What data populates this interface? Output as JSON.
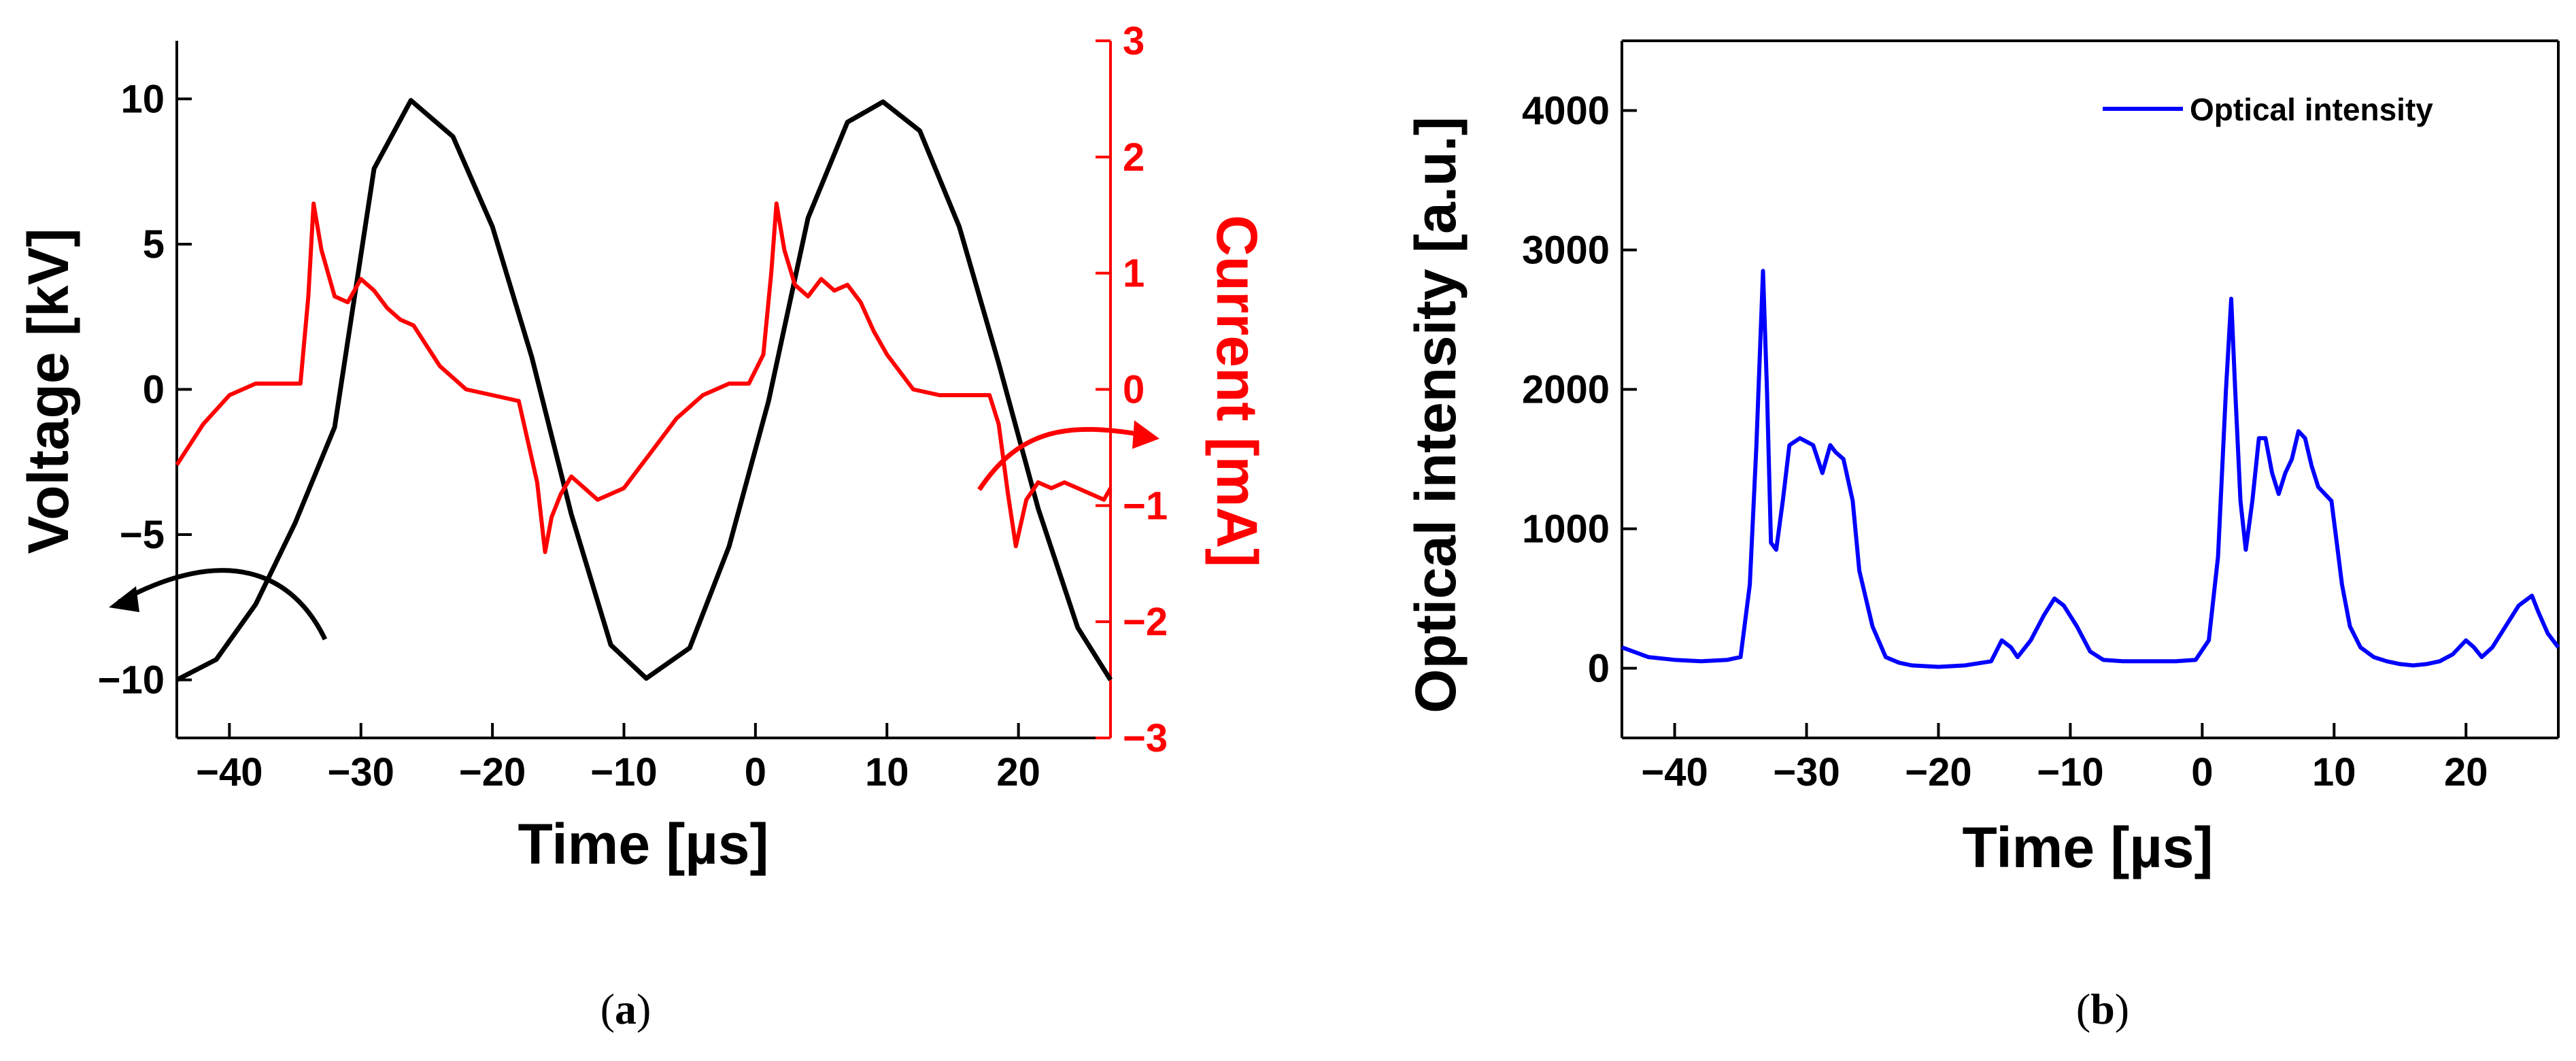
{
  "colors": {
    "voltage": "#000000",
    "current": "#ff0000",
    "optical": "#0000ff"
  },
  "chart_data": [
    {
      "type": "line",
      "panel_label_open": "(",
      "panel_label_letter": "a",
      "panel_label_close": ")",
      "xlabel": "Time [µs]",
      "ylabel": "Voltage [kV]",
      "y2label": "Current [mA]",
      "xlim": [
        -44,
        27
      ],
      "ylim": [
        -12,
        12
      ],
      "y2lim": [
        -3,
        3
      ],
      "xticks": [
        -40,
        -30,
        -20,
        -10,
        0,
        10,
        20
      ],
      "xtick_labels": [
        "−40",
        "−30",
        "−20",
        "−10",
        "0",
        "10",
        "20"
      ],
      "yticks": [
        10,
        5,
        0,
        -5,
        -10
      ],
      "ytick_labels": [
        "10",
        "5",
        "0",
        "−5",
        "−10"
      ],
      "y2ticks": [
        3,
        2,
        1,
        0,
        -1,
        -2,
        -3
      ],
      "y2tick_labels": [
        "3",
        "2",
        "1",
        "0",
        "−1",
        "−2",
        "−3"
      ],
      "series": [
        {
          "name": "Voltage",
          "axis": "left",
          "color": "#000000",
          "x": [
            -44,
            -41,
            -38,
            -35,
            -32,
            -29,
            -26.2,
            -23,
            -20,
            -17,
            -14,
            -11,
            -8.3,
            -5,
            -2,
            1,
            4,
            7,
            9.7,
            12.5,
            15.5,
            18.5,
            21.5,
            24.5,
            27
          ],
          "y": [
            -10,
            -9.3,
            -7.4,
            -4.6,
            -1.3,
            7.6,
            9.95,
            8.7,
            5.6,
            1.1,
            -4.3,
            -8.8,
            -9.95,
            -8.9,
            -5.4,
            -0.4,
            5.9,
            9.2,
            9.9,
            8.9,
            5.6,
            0.9,
            -4.1,
            -8.2,
            -10
          ]
        },
        {
          "name": "Current",
          "axis": "right",
          "color": "#ff0000",
          "x": [
            -44,
            -42,
            -40,
            -38,
            -36,
            -34.6,
            -34.0,
            -33.6,
            -33.0,
            -32,
            -31,
            -30,
            -29,
            -28,
            -27,
            -26,
            -24,
            -22,
            -20,
            -18,
            -17.2,
            -16.6,
            -16.0,
            -15.5,
            -14.8,
            -14,
            -13,
            -12,
            -11,
            -10,
            -9,
            -8,
            -6,
            -4,
            -2,
            -0.5,
            0.6,
            1.2,
            1.6,
            2.2,
            3,
            4,
            5,
            6,
            7,
            8,
            9,
            10,
            12,
            14,
            16,
            17.8,
            18.5,
            19.2,
            19.8,
            20.6,
            21.5,
            22.5,
            23.5,
            24.5,
            25.5,
            26.5,
            27
          ],
          "y": [
            -0.65,
            -0.3,
            -0.05,
            0.05,
            0.05,
            0.05,
            0.8,
            1.6,
            1.2,
            0.8,
            0.75,
            0.95,
            0.85,
            0.7,
            0.6,
            0.55,
            0.2,
            0.0,
            -0.05,
            -0.1,
            -0.5,
            -0.8,
            -1.4,
            -1.1,
            -0.9,
            -0.75,
            -0.85,
            -0.95,
            -0.9,
            -0.85,
            -0.7,
            -0.55,
            -0.25,
            -0.05,
            0.05,
            0.05,
            0.3,
            1.0,
            1.6,
            1.2,
            0.9,
            0.8,
            0.95,
            0.85,
            0.9,
            0.75,
            0.5,
            0.3,
            0.0,
            -0.05,
            -0.05,
            -0.05,
            -0.3,
            -0.9,
            -1.35,
            -0.95,
            -0.8,
            -0.85,
            -0.8,
            -0.85,
            -0.9,
            -0.95,
            -0.85
          ]
        }
      ]
    },
    {
      "type": "line",
      "panel_label_open": "(",
      "panel_label_letter": "b",
      "panel_label_close": ")",
      "xlabel": "Time [µs]",
      "ylabel": "Optical intensity [a.u.]",
      "xlim": [
        -44,
        27
      ],
      "ylim": [
        -500,
        4500
      ],
      "xticks": [
        -40,
        -30,
        -20,
        -10,
        0,
        10,
        20
      ],
      "xtick_labels": [
        "−40",
        "−30",
        "−20",
        "−10",
        "0",
        "10",
        "20"
      ],
      "yticks": [
        4000,
        3000,
        2000,
        1000,
        0
      ],
      "ytick_labels": [
        "4000",
        "3000",
        "2000",
        "1000",
        "0"
      ],
      "legend": {
        "position": "top-right",
        "entries": [
          "Optical intensity"
        ]
      },
      "series": [
        {
          "name": "Optical intensity",
          "color": "#0000ff",
          "x": [
            -44,
            -42,
            -40,
            -38,
            -36,
            -35,
            -34.3,
            -33.8,
            -33.3,
            -33.0,
            -32.7,
            -32.3,
            -31.8,
            -31.3,
            -30.5,
            -29.5,
            -28.8,
            -28.2,
            -27.8,
            -27.2,
            -26.5,
            -26,
            -25,
            -24,
            -23,
            -22,
            -20,
            -18,
            -16,
            -15.2,
            -14.5,
            -14,
            -13,
            -12,
            -11.2,
            -10.5,
            -9.5,
            -8.5,
            -7.5,
            -6,
            -4,
            -2,
            -0.5,
            0.5,
            1.2,
            1.8,
            2.2,
            2.5,
            2.9,
            3.3,
            3.8,
            4.3,
            4.8,
            5.3,
            5.8,
            6.3,
            6.8,
            7.3,
            7.8,
            8.3,
            8.8,
            9.3,
            9.8,
            10.2,
            10.6,
            11.2,
            12,
            13,
            14,
            15,
            16,
            17,
            18,
            19,
            20,
            20.6,
            21.2,
            22,
            23,
            24,
            25,
            25.5,
            26.2,
            27
          ],
          "y": [
            150,
            80,
            60,
            50,
            60,
            80,
            600,
            1600,
            2850,
            2000,
            900,
            850,
            1200,
            1600,
            1650,
            1600,
            1400,
            1600,
            1550,
            1500,
            1200,
            700,
            300,
            80,
            40,
            20,
            10,
            20,
            50,
            200,
            150,
            80,
            200,
            380,
            500,
            450,
            300,
            120,
            60,
            50,
            50,
            50,
            60,
            200,
            800,
            2000,
            2650,
            2000,
            1200,
            850,
            1200,
            1650,
            1650,
            1400,
            1250,
            1400,
            1500,
            1700,
            1650,
            1450,
            1300,
            1250,
            1200,
            900,
            600,
            300,
            150,
            80,
            50,
            30,
            20,
            30,
            50,
            100,
            200,
            150,
            80,
            150,
            300,
            450,
            520,
            400,
            250,
            150
          ]
        }
      ]
    }
  ]
}
